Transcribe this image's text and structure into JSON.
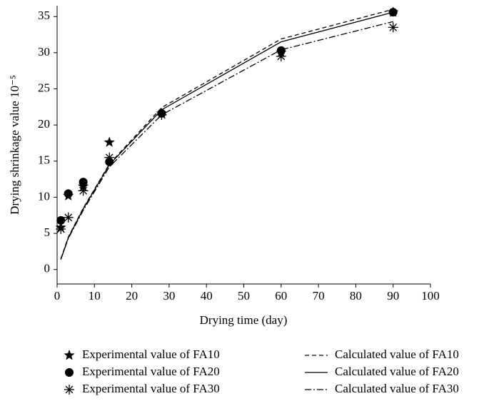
{
  "chart_data": {
    "type": "line",
    "xlabel": "Drying time (day)",
    "ylabel": "Drying shrinkage value 10⁻⁵",
    "xlim": [
      0,
      100
    ],
    "xticks": [
      0,
      10,
      20,
      30,
      40,
      50,
      60,
      70,
      80,
      90,
      100
    ],
    "ylim": [
      -2,
      36.5
    ],
    "yticks": [
      0,
      5,
      10,
      15,
      20,
      25,
      30,
      35
    ],
    "series": [
      {
        "name": "Experimental value of FA10",
        "color": "#000000",
        "marker": "star",
        "x": [
          1,
          3,
          7,
          14,
          28,
          60,
          90
        ],
        "values": [
          5.8,
          10.2,
          11.5,
          17.6,
          21.6,
          30.0,
          35.6
        ]
      },
      {
        "name": "Experimental value of FA20",
        "color": "#000000",
        "marker": "circle",
        "x": [
          1,
          3,
          7,
          14,
          28,
          60,
          90
        ],
        "values": [
          6.8,
          10.5,
          12.1,
          14.9,
          21.6,
          30.3,
          35.6
        ]
      },
      {
        "name": "Experimental value of FA30",
        "color": "#000000",
        "marker": "asterisk",
        "x": [
          1,
          3,
          7,
          14,
          28,
          60,
          90
        ],
        "values": [
          5.6,
          7.2,
          10.9,
          15.5,
          21.4,
          29.5,
          33.5
        ]
      },
      {
        "name": "Calculated value of FA10",
        "color": "#000000",
        "dash": "6,4",
        "x": [
          1,
          3,
          7,
          14,
          28,
          60,
          90
        ],
        "values": [
          1.5,
          4.5,
          8.5,
          14.6,
          22.4,
          31.9,
          36.0
        ]
      },
      {
        "name": "Calculated value of FA20",
        "color": "#000000",
        "dash": "none",
        "x": [
          1,
          3,
          7,
          14,
          28,
          60,
          90
        ],
        "values": [
          1.4,
          4.4,
          8.4,
          14.5,
          22.1,
          31.5,
          35.6
        ]
      },
      {
        "name": "Calculated value of FA30",
        "color": "#000000",
        "dash": "9,3,2,3",
        "x": [
          1,
          3,
          7,
          14,
          28,
          60,
          90
        ],
        "values": [
          1.4,
          4.3,
          8.2,
          14.2,
          21.4,
          30.4,
          34.3
        ]
      }
    ]
  }
}
